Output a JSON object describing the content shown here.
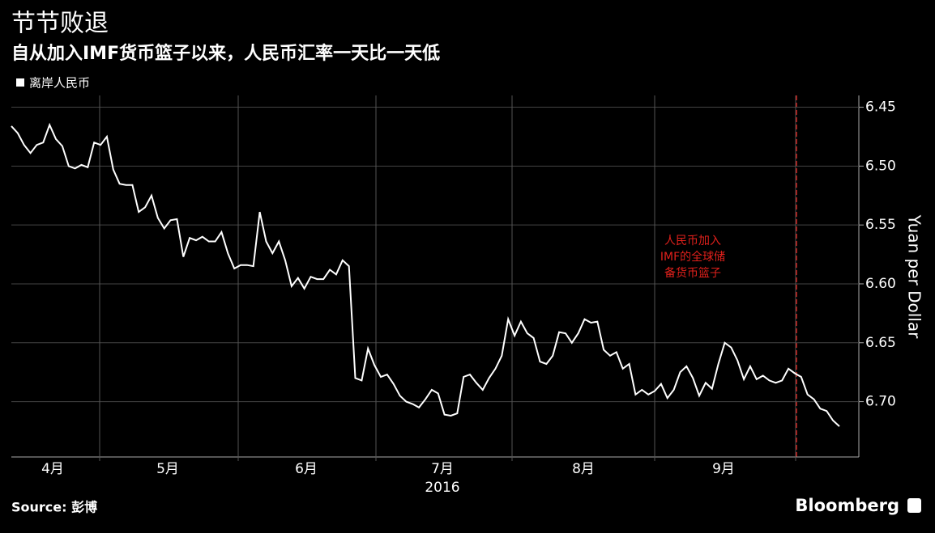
{
  "chart_data": {
    "type": "line",
    "title": "节节败退",
    "subtitle": "自从加入IMF货币篮子以来，人民币汇率一天比一天低",
    "series": [
      {
        "name": "离岸人民币",
        "color": "#ffffff",
        "values": [
          6.466,
          6.472,
          6.482,
          6.489,
          6.482,
          6.48,
          6.465,
          6.477,
          6.483,
          6.5,
          6.502,
          6.499,
          6.501,
          6.48,
          6.482,
          6.475,
          6.503,
          6.515,
          6.516,
          6.516,
          6.539,
          6.535,
          6.525,
          6.544,
          6.553,
          6.546,
          6.545,
          6.577,
          6.561,
          6.563,
          6.56,
          6.564,
          6.564,
          6.556,
          6.574,
          6.587,
          6.584,
          6.584,
          6.585,
          6.539,
          6.564,
          6.574,
          6.564,
          6.58,
          6.602,
          6.595,
          6.604,
          6.594,
          6.596,
          6.596,
          6.588,
          6.592,
          6.58,
          6.585,
          6.68,
          6.682,
          6.655,
          6.669,
          6.679,
          6.677,
          6.685,
          6.695,
          6.7,
          6.702,
          6.705,
          6.698,
          6.69,
          6.693,
          6.711,
          6.712,
          6.71,
          6.679,
          6.677,
          6.684,
          6.69,
          6.68,
          6.672,
          6.661,
          6.63,
          6.644,
          6.632,
          6.642,
          6.646,
          6.666,
          6.668,
          6.661,
          6.641,
          6.642,
          6.65,
          6.642,
          6.63,
          6.633,
          6.632,
          6.656,
          6.661,
          6.658,
          6.672,
          6.668,
          6.694,
          6.69,
          6.694,
          6.691,
          6.685,
          6.697,
          6.69,
          6.675,
          6.67,
          6.68,
          6.695,
          6.684,
          6.689,
          6.668,
          6.65,
          6.654,
          6.665,
          6.681,
          6.67,
          6.681,
          6.678,
          6.682,
          6.684,
          6.682,
          6.672,
          6.676,
          6.679,
          6.694,
          6.698,
          6.706,
          6.708,
          6.716,
          6.721
        ]
      }
    ],
    "x_labels": [
      "4月",
      "5月",
      "6月",
      "7月",
      "8月",
      "9月"
    ],
    "x_year": "2016",
    "ylim": [
      6.44,
      6.747
    ],
    "y_inverted": true,
    "yticks": [
      6.45,
      {
        "value": 6.5,
        "label": "6.50"
      },
      6.55,
      {
        "value": 6.6,
        "label": "6.60"
      },
      6.65,
      {
        "value": 6.7,
        "label": "6.70"
      }
    ],
    "ylabel": "Yuan per Dollar",
    "annotation": [
      "人民币加入",
      "IMF的全球储",
      "备货币篮子"
    ],
    "annotation_color": "#e0201b",
    "grid": true,
    "source": "Source: 彭博",
    "brand": "Bloomberg"
  }
}
